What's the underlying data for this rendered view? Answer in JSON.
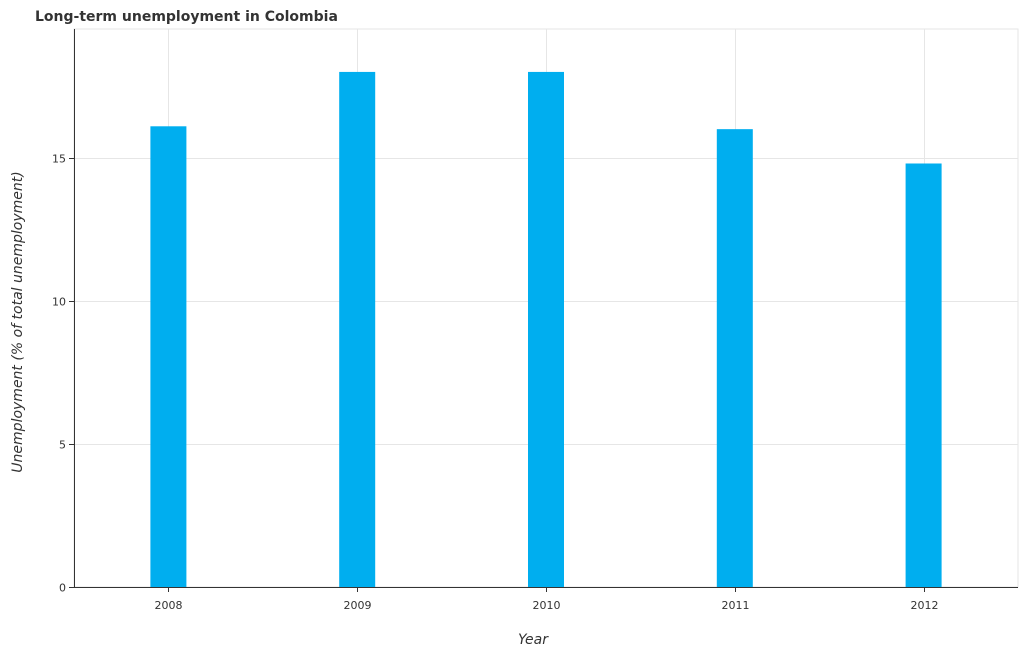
{
  "chart_data": {
    "type": "bar",
    "title": "Long-term unemployment in Colombia",
    "xlabel": "Year",
    "ylabel": "Unemployment (% of total unemployment)",
    "categories": [
      "2008",
      "2009",
      "2010",
      "2011",
      "2012"
    ],
    "values": [
      16.1,
      18.0,
      18.0,
      16.0,
      14.8
    ],
    "ylim": [
      0,
      19.5
    ],
    "yticks": [
      0,
      5,
      10,
      15
    ],
    "ytick_labels": [
      "0",
      "5",
      "10",
      "15"
    ],
    "grid": true,
    "bar_color": "#00aeef",
    "grid_color": "#e6e6e6",
    "axis_color": "#333333"
  }
}
